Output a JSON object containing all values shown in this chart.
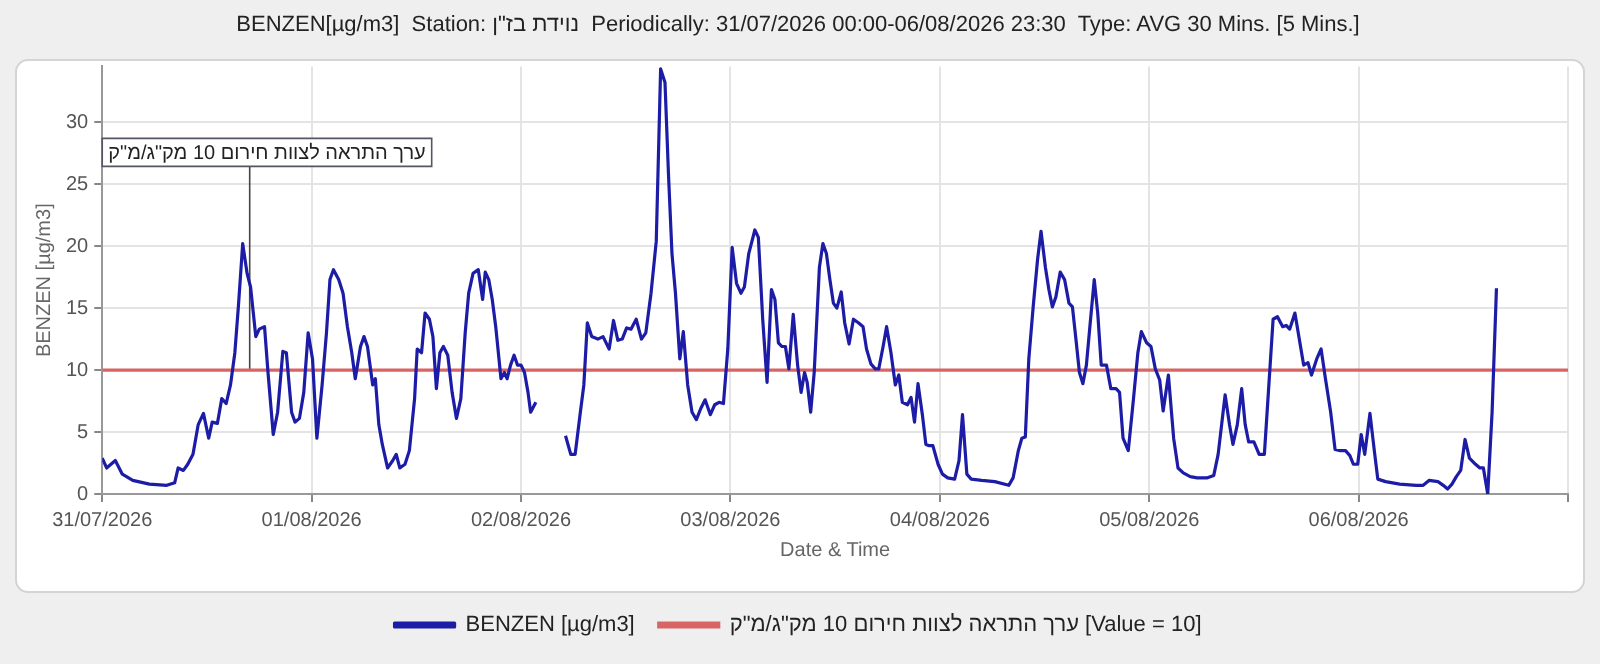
{
  "chart_data": {
    "type": "line",
    "title": "BENZEN[µg/m3]  Station: נוידת בז\"ן  Periodically: 31/07/2026 00:00-06/08/2026 23:30  Type: AVG 30 Mins. [5 Mins.]",
    "xlabel": "Date & Time",
    "ylabel": "BENZEN [µg/m3]",
    "xlim": [
      "2026-07-31",
      "2026-08-07"
    ],
    "xticks": [
      {
        "value": "2026-07-31",
        "label": "31/07/2026"
      },
      {
        "value": "2026-08-01",
        "label": "01/08/2026"
      },
      {
        "value": "2026-08-02",
        "label": "02/08/2026"
      },
      {
        "value": "2026-08-03",
        "label": "03/08/2026"
      },
      {
        "value": "2026-08-04",
        "label": "04/08/2026"
      },
      {
        "value": "2026-08-05",
        "label": "05/08/2026"
      },
      {
        "value": "2026-08-06",
        "label": "06/08/2026"
      },
      {
        "value": "2026-08-07",
        "label": null
      }
    ],
    "ylim": [
      0,
      34.5
    ],
    "yticks": [
      0,
      5,
      10,
      15,
      20,
      25,
      30
    ],
    "grid": true,
    "legend": "bottom",
    "marker": "none",
    "line_style": "solid",
    "series": [
      {
        "name": "BENZEN [µg/m3]",
        "color": "#1c1ca6",
        "x": [
          "2026-07-31T00:00",
          "2026-07-31T00:30",
          "2026-07-31T01:30",
          "2026-07-31T02:18",
          "2026-07-31T03:30",
          "2026-07-31T05:24",
          "2026-07-31T07:24",
          "2026-07-31T08:18",
          "2026-07-31T08:42",
          "2026-07-31T09:18",
          "2026-07-31T09:48",
          "2026-07-31T10:24",
          "2026-07-31T11:00",
          "2026-07-31T11:36",
          "2026-07-31T12:12",
          "2026-07-31T12:36",
          "2026-07-31T13:12",
          "2026-07-31T13:42",
          "2026-07-31T14:12",
          "2026-07-31T14:42",
          "2026-07-31T15:12",
          "2026-07-31T15:36",
          "2026-07-31T16:06",
          "2026-07-31T16:36",
          "2026-07-31T17:00",
          "2026-07-31T17:36",
          "2026-07-31T18:00",
          "2026-07-31T18:36",
          "2026-07-31T19:00",
          "2026-07-31T19:36",
          "2026-07-31T20:06",
          "2026-07-31T20:42",
          "2026-07-31T21:06",
          "2026-07-31T21:42",
          "2026-07-31T22:06",
          "2026-07-31T22:36",
          "2026-07-31T23:06",
          "2026-07-31T23:36",
          "2026-08-01T00:06",
          "2026-08-01T00:36",
          "2026-08-01T01:12",
          "2026-08-01T01:42",
          "2026-08-01T02:06",
          "2026-08-01T02:30",
          "2026-08-01T03:06",
          "2026-08-01T03:36",
          "2026-08-01T04:06",
          "2026-08-01T04:36",
          "2026-08-01T05:00",
          "2026-08-01T05:36",
          "2026-08-01T06:00",
          "2026-08-01T06:24",
          "2026-08-01T07:00",
          "2026-08-01T07:18",
          "2026-08-01T07:42",
          "2026-08-01T08:06",
          "2026-08-01T08:42",
          "2026-08-01T09:18",
          "2026-08-01T09:42",
          "2026-08-01T10:06",
          "2026-08-01T10:42",
          "2026-08-01T11:12",
          "2026-08-01T11:48",
          "2026-08-01T12:06",
          "2026-08-01T12:36",
          "2026-08-01T13:00",
          "2026-08-01T13:30",
          "2026-08-01T13:54",
          "2026-08-01T14:18",
          "2026-08-01T14:42",
          "2026-08-01T15:06",
          "2026-08-01T15:36",
          "2026-08-01T16:06",
          "2026-08-01T16:36",
          "2026-08-01T17:06",
          "2026-08-01T17:36",
          "2026-08-01T18:00",
          "2026-08-01T18:30",
          "2026-08-01T19:06",
          "2026-08-01T19:36",
          "2026-08-01T19:54",
          "2026-08-01T20:18",
          "2026-08-01T20:42",
          "2026-08-01T21:06",
          "2026-08-01T21:42",
          "2026-08-01T22:06",
          "2026-08-01T22:24",
          "2026-08-01T22:48",
          "2026-08-01T23:12",
          "2026-08-01T23:36",
          "2026-08-02T00:00",
          "2026-08-02T00:24",
          "2026-08-02T00:48",
          "2026-08-02T01:06",
          "2026-08-02T01:42",
          "2026-08-02T03:00",
          "2026-08-02T05:06",
          "2026-08-02T05:42",
          "2026-08-02T06:12",
          "2026-08-02T06:48",
          "2026-08-02T07:12",
          "2026-08-02T07:36",
          "2026-08-02T08:06",
          "2026-08-02T08:48",
          "2026-08-02T09:24",
          "2026-08-02T10:06",
          "2026-08-02T10:36",
          "2026-08-02T11:06",
          "2026-08-02T11:36",
          "2026-08-02T12:06",
          "2026-08-02T12:36",
          "2026-08-02T13:12",
          "2026-08-02T13:48",
          "2026-08-02T14:18",
          "2026-08-02T14:54",
          "2026-08-02T15:30",
          "2026-08-02T16:00",
          "2026-08-02T16:30",
          "2026-08-02T16:54",
          "2026-08-02T17:18",
          "2026-08-02T17:42",
          "2026-08-02T18:12",
          "2026-08-02T18:36",
          "2026-08-02T19:06",
          "2026-08-02T19:36",
          "2026-08-02T20:06",
          "2026-08-02T20:36",
          "2026-08-02T21:06",
          "2026-08-02T21:42",
          "2026-08-02T22:12",
          "2026-08-02T22:42",
          "2026-08-02T23:12",
          "2026-08-02T23:42",
          "2026-08-03T00:12",
          "2026-08-03T00:42",
          "2026-08-03T01:12",
          "2026-08-03T01:36",
          "2026-08-03T02:06",
          "2026-08-03T02:48",
          "2026-08-03T03:12",
          "2026-08-03T03:42",
          "2026-08-03T04:12",
          "2026-08-03T04:42",
          "2026-08-03T05:06",
          "2026-08-03T05:30",
          "2026-08-03T05:54",
          "2026-08-03T06:18",
          "2026-08-03T06:42",
          "2026-08-03T07:12",
          "2026-08-03T07:42",
          "2026-08-03T08:06",
          "2026-08-03T08:30",
          "2026-08-03T08:48",
          "2026-08-03T09:12",
          "2026-08-03T09:36",
          "2026-08-03T10:12",
          "2026-08-03T10:36",
          "2026-08-03T11:00",
          "2026-08-03T11:24",
          "2026-08-03T11:48",
          "2026-08-03T12:12",
          "2026-08-03T12:42",
          "2026-08-03T13:06",
          "2026-08-03T13:36",
          "2026-08-03T14:06",
          "2026-08-03T14:42",
          "2026-08-03T15:12",
          "2026-08-03T15:36",
          "2026-08-03T16:06",
          "2026-08-03T16:36",
          "2026-08-03T17:00",
          "2026-08-03T17:30",
          "2026-08-03T17:54",
          "2026-08-03T18:24",
          "2026-08-03T18:54",
          "2026-08-03T19:18",
          "2026-08-03T19:42",
          "2026-08-03T20:18",
          "2026-08-03T20:42",
          "2026-08-03T21:06",
          "2026-08-03T21:30",
          "2026-08-03T22:00",
          "2026-08-03T22:24",
          "2026-08-03T22:48",
          "2026-08-03T23:12",
          "2026-08-03T23:48",
          "2026-08-04T00:18",
          "2026-08-04T00:54",
          "2026-08-04T01:42",
          "2026-08-04T02:12",
          "2026-08-04T02:36",
          "2026-08-04T03:06",
          "2026-08-04T03:36",
          "2026-08-04T04:48",
          "2026-08-04T06:18",
          "2026-08-04T07:54",
          "2026-08-04T08:24",
          "2026-08-04T09:00",
          "2026-08-04T09:24",
          "2026-08-04T09:48",
          "2026-08-04T10:12",
          "2026-08-04T10:42",
          "2026-08-04T11:12",
          "2026-08-04T11:36",
          "2026-08-04T12:06",
          "2026-08-04T12:30",
          "2026-08-04T12:54",
          "2026-08-04T13:18",
          "2026-08-04T13:48",
          "2026-08-04T14:18",
          "2026-08-04T14:48",
          "2026-08-04T15:12",
          "2026-08-04T15:36",
          "2026-08-04T16:00",
          "2026-08-04T16:24",
          "2026-08-04T16:48",
          "2026-08-04T17:12",
          "2026-08-04T17:42",
          "2026-08-04T18:06",
          "2026-08-04T18:30",
          "2026-08-04T19:06",
          "2026-08-04T19:36",
          "2026-08-04T20:12",
          "2026-08-04T20:36",
          "2026-08-04T21:00",
          "2026-08-04T21:36",
          "2026-08-04T22:12",
          "2026-08-04T22:42",
          "2026-08-04T23:06",
          "2026-08-04T23:42",
          "2026-08-05T00:12",
          "2026-08-05T00:42",
          "2026-08-05T01:12",
          "2026-08-05T01:36",
          "2026-08-05T02:12",
          "2026-08-05T02:48",
          "2026-08-05T03:18",
          "2026-08-05T03:54",
          "2026-08-05T04:42",
          "2026-08-05T05:30",
          "2026-08-05T06:36",
          "2026-08-05T07:24",
          "2026-08-05T07:54",
          "2026-08-05T08:42",
          "2026-08-05T09:12",
          "2026-08-05T09:36",
          "2026-08-05T10:06",
          "2026-08-05T10:36",
          "2026-08-05T11:00",
          "2026-08-05T11:24",
          "2026-08-05T12:00",
          "2026-08-05T12:36",
          "2026-08-05T13:12",
          "2026-08-05T14:12",
          "2026-08-05T14:42",
          "2026-08-05T15:18",
          "2026-08-05T15:42",
          "2026-08-05T16:06",
          "2026-08-05T16:42",
          "2026-08-05T17:12",
          "2026-08-05T17:42",
          "2026-08-05T18:12",
          "2026-08-05T18:36",
          "2026-08-05T19:12",
          "2026-08-05T19:42",
          "2026-08-05T20:12",
          "2026-08-05T20:48",
          "2026-08-05T21:18",
          "2026-08-05T21:54",
          "2026-08-05T22:30",
          "2026-08-05T23:00",
          "2026-08-05T23:24",
          "2026-08-05T23:54",
          "2026-08-06T00:18",
          "2026-08-06T00:42",
          "2026-08-06T01:18",
          "2026-08-06T01:48",
          "2026-08-06T02:12",
          "2026-08-06T03:06",
          "2026-08-06T04:42",
          "2026-08-06T06:36",
          "2026-08-06T07:24",
          "2026-08-06T08:06",
          "2026-08-06T09:06",
          "2026-08-06T09:42",
          "2026-08-06T10:12",
          "2026-08-06T10:42",
          "2026-08-06T11:12",
          "2026-08-06T11:42",
          "2026-08-06T12:12",
          "2026-08-06T12:42",
          "2026-08-06T13:24",
          "2026-08-06T13:54",
          "2026-08-06T14:18",
          "2026-08-06T14:48",
          "2026-08-06T15:18",
          "2026-08-06T15:48"
        ],
        "values": [
          2.9,
          2.1,
          2.7,
          1.6,
          1.1,
          0.8,
          0.7,
          0.9,
          2.1,
          1.9,
          2.4,
          3.2,
          5.6,
          6.5,
          4.5,
          5.8,
          5.7,
          7.7,
          7.3,
          8.8,
          11.4,
          15.1,
          20.2,
          17.8,
          16.7,
          12.7,
          13.3,
          13.5,
          9.8,
          4.8,
          6.6,
          11.5,
          11.4,
          6.6,
          5.8,
          6.1,
          8.2,
          13.0,
          10.9,
          4.5,
          8.8,
          13.0,
          17.3,
          18.1,
          17.3,
          16.2,
          13.5,
          11.4,
          9.3,
          11.9,
          12.7,
          11.9,
          8.8,
          9.3,
          5.6,
          4.0,
          2.1,
          2.7,
          3.2,
          2.1,
          2.4,
          3.5,
          7.7,
          11.7,
          11.4,
          14.6,
          14.1,
          12.7,
          8.5,
          11.4,
          11.9,
          11.2,
          8.2,
          6.1,
          7.7,
          13.0,
          16.2,
          17.8,
          18.1,
          15.7,
          17.9,
          17.3,
          15.7,
          13.5,
          9.3,
          9.8,
          9.3,
          10.4,
          11.2,
          10.4,
          10.4,
          9.8,
          8.2,
          6.6,
          7.4,
          null,
          4.7,
          3.2,
          3.2,
          6.6,
          8.8,
          13.8,
          12.7,
          12.5,
          12.7,
          11.7,
          14.0,
          12.4,
          12.5,
          13.4,
          13.3,
          14.1,
          12.5,
          13.0,
          16.2,
          20.4,
          34.3,
          33.2,
          25.8,
          19.4,
          16.2,
          10.9,
          13.1,
          8.8,
          6.6,
          6.0,
          6.9,
          7.6,
          6.4,
          7.2,
          7.4,
          7.3,
          11.7,
          19.9,
          17.0,
          16.2,
          16.7,
          19.4,
          21.3,
          20.7,
          14.1,
          9.0,
          16.5,
          15.7,
          12.2,
          11.9,
          11.9,
          10.1,
          14.5,
          10.4,
          8.2,
          9.8,
          9.0,
          6.6,
          9.8,
          18.3,
          20.2,
          19.4,
          17.3,
          15.4,
          15.0,
          16.3,
          13.8,
          12.1,
          14.1,
          13.8,
          13.5,
          11.7,
          10.5,
          10.1,
          10.1,
          11.9,
          13.5,
          11.4,
          8.8,
          9.6,
          7.4,
          7.2,
          7.8,
          5.8,
          8.9,
          6.4,
          4.0,
          3.9,
          3.9,
          2.4,
          1.6,
          1.3,
          1.2,
          2.7,
          6.4,
          1.6,
          1.2,
          1.1,
          1.0,
          0.7,
          1.3,
          3.5,
          4.5,
          4.6,
          10.9,
          15.1,
          18.9,
          21.2,
          18.3,
          16.5,
          15.1,
          15.9,
          17.9,
          17.3,
          15.4,
          15.1,
          12.5,
          9.8,
          8.9,
          10.4,
          13.5,
          17.3,
          14.6,
          10.4,
          10.4,
          8.5,
          8.5,
          8.2,
          4.5,
          3.5,
          7.7,
          11.4,
          13.1,
          12.2,
          11.9,
          10.1,
          9.2,
          6.7,
          9.6,
          4.5,
          2.1,
          1.7,
          1.4,
          1.3,
          1.3,
          1.5,
          3.2,
          8.0,
          5.6,
          4.0,
          5.6,
          8.5,
          5.6,
          4.2,
          4.2,
          3.2,
          3.2,
          14.1,
          14.3,
          13.5,
          13.6,
          13.3,
          14.6,
          12.5,
          10.4,
          10.6,
          9.6,
          10.9,
          11.7,
          9.3,
          6.6,
          3.6,
          3.5,
          3.5,
          3.1,
          2.4,
          2.4,
          4.8,
          3.2,
          6.5,
          3.5,
          1.2,
          1.0,
          0.8,
          0.7,
          0.7,
          1.1,
          1.0,
          0.7,
          0.4,
          0.8,
          1.4,
          1.9,
          4.4,
          2.9,
          2.4,
          2.1,
          2.1,
          0.0,
          6.6,
          16.6
        ]
      }
    ],
    "ref_lines": [
      {
        "axis": "y",
        "value": 10,
        "label": "ערך התראה לצוות חירום 10 מק\"ג/מ\"ק [Value = 10]",
        "color": "#d96464"
      }
    ],
    "annotations": [
      {
        "text": "ערך התראה לצוות חירום 10 מק\"ג/מ\"ק",
        "x": "2026-07-31T16:54",
        "y": 10
      }
    ]
  }
}
